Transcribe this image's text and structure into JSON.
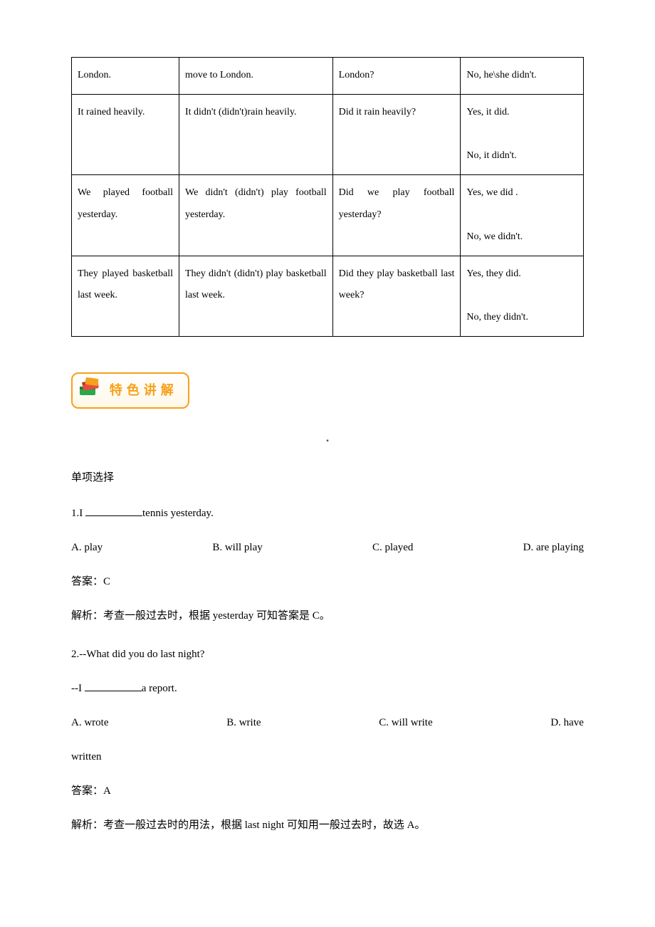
{
  "table": {
    "rows": [
      [
        "London.",
        "move to London.",
        "London?",
        "No, he\\she didn't."
      ],
      [
        "It rained heavily.",
        "It didn't (didn't)rain heavily.",
        "Did it rain heavily?",
        "Yes, it did.\nNo, it didn't."
      ],
      [
        "We played football yesterday.",
        "We didn't (didn't) play football yesterday.",
        "Did we play football yesterday?",
        "Yes, we did .\nNo, we didn't."
      ],
      [
        "They played basketball last week.",
        "They didn't (didn't) play basketball last week.",
        "Did they play basketball last week?",
        "Yes, they did.\nNo, they didn't."
      ]
    ]
  },
  "badge": {
    "text": "特色讲解"
  },
  "section_title": "单项选择",
  "q1": {
    "stem_pre": "1.I ",
    "stem_post": "tennis yesterday.",
    "opts": [
      "A. play",
      "B. will play",
      "C. played",
      "D. are playing"
    ],
    "answer": "答案：C",
    "explain": "解析：考查一般过去时，根据 yesterday 可知答案是 C。"
  },
  "q2": {
    "line1": "2.--What did you do last night?",
    "line2_pre": " --I ",
    "line2_post": "a report.",
    "opts": [
      "A. wrote",
      "B. write",
      "C. will write",
      "D.  have"
    ],
    "opt_tail": "written",
    "answer": "答案：A",
    "explain": "解析：考查一般过去时的用法，根据 last night 可知用一般过去时，故选 A。"
  },
  "center_dot": "▪"
}
